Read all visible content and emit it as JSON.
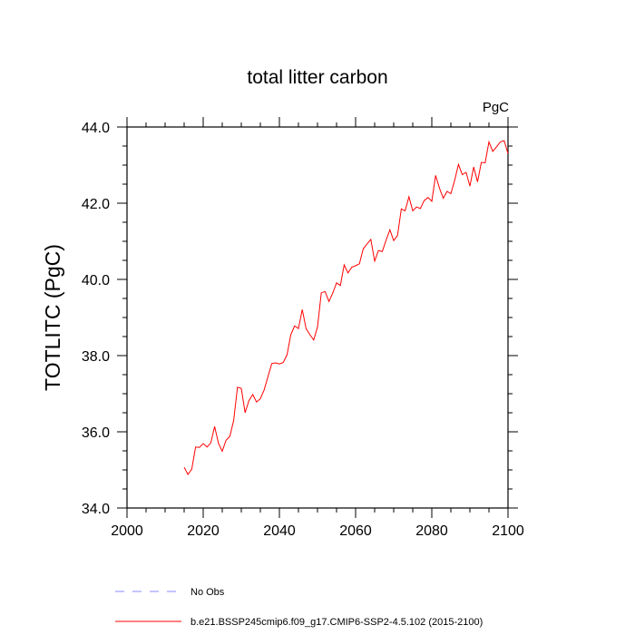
{
  "chart_data": {
    "type": "line",
    "title": "total litter carbon",
    "units_label": "PgC",
    "xlabel": "",
    "ylabel": "TOTLITC  (PgC)",
    "xlim": [
      2000,
      2100
    ],
    "ylim": [
      34.0,
      44.0
    ],
    "xticks": [
      2000,
      2020,
      2040,
      2060,
      2080,
      2100
    ],
    "xtick_labels": [
      "2000",
      "2020",
      "2040",
      "2060",
      "2080",
      "2100"
    ],
    "yticks": [
      34.0,
      36.0,
      38.0,
      40.0,
      42.0,
      44.0
    ],
    "ytick_labels": [
      "34.0",
      "36.0",
      "38.0",
      "40.0",
      "42.0",
      "44.0"
    ],
    "grid": false,
    "legend_position": "bottom",
    "legend": [
      {
        "name": "No Obs",
        "color": "#8888ff",
        "style": "dashed"
      },
      {
        "name": "b.e21.BSSP245cmip6.f09_g17.CMIP6-SSP2-4.5.102 (2015-2100)",
        "color": "#ff0000",
        "style": "solid"
      }
    ],
    "series": [
      {
        "name": "b.e21.BSSP245cmip6.f09_g17.CMIP6-SSP2-4.5.102 (2015-2100)",
        "color": "#ff0000",
        "x": [
          2015,
          2016,
          2017,
          2018,
          2019,
          2020,
          2021,
          2022,
          2023,
          2024,
          2025,
          2026,
          2027,
          2028,
          2029,
          2030,
          2031,
          2032,
          2033,
          2034,
          2035,
          2036,
          2037,
          2038,
          2039,
          2040,
          2041,
          2042,
          2043,
          2044,
          2045,
          2046,
          2047,
          2048,
          2049,
          2050,
          2051,
          2052,
          2053,
          2054,
          2055,
          2056,
          2057,
          2058,
          2059,
          2060,
          2061,
          2062,
          2063,
          2064,
          2065,
          2066,
          2067,
          2068,
          2069,
          2070,
          2071,
          2072,
          2073,
          2074,
          2075,
          2076,
          2077,
          2078,
          2079,
          2080,
          2081,
          2082,
          2083,
          2084,
          2085,
          2086,
          2087,
          2088,
          2089,
          2090,
          2091,
          2092,
          2093,
          2094,
          2095,
          2096,
          2097,
          2098,
          2099,
          2100
        ],
        "values": [
          35.07,
          34.88,
          35.02,
          35.6,
          35.59,
          35.69,
          35.6,
          35.71,
          36.14,
          35.7,
          35.49,
          35.78,
          35.88,
          36.3,
          37.17,
          37.14,
          36.5,
          36.82,
          36.98,
          36.78,
          36.87,
          37.1,
          37.45,
          37.79,
          37.81,
          37.78,
          37.82,
          38.02,
          38.55,
          38.78,
          38.71,
          39.21,
          38.71,
          38.55,
          38.41,
          38.75,
          39.65,
          39.68,
          39.42,
          39.64,
          39.91,
          39.84,
          40.38,
          40.17,
          40.32,
          40.36,
          40.41,
          40.8,
          40.93,
          41.05,
          40.48,
          40.76,
          40.73,
          41.03,
          41.3,
          41.02,
          41.15,
          41.85,
          41.8,
          42.17,
          41.8,
          41.9,
          41.86,
          42.07,
          42.15,
          42.05,
          42.73,
          42.4,
          42.13,
          42.31,
          42.25,
          42.6,
          43.02,
          42.75,
          42.81,
          42.45,
          42.95,
          42.56,
          43.07,
          43.06,
          43.61,
          43.36,
          43.48,
          43.61,
          43.64,
          43.3
        ]
      }
    ]
  }
}
